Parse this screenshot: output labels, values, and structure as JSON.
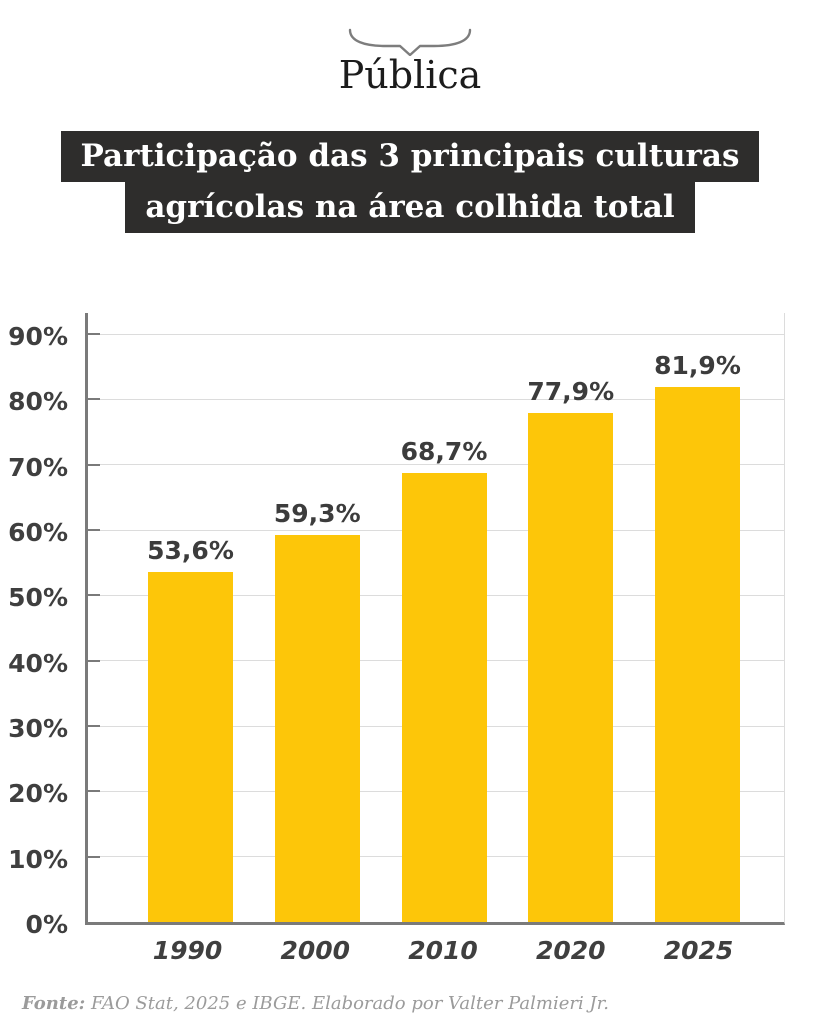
{
  "logo": {
    "text": "Pública"
  },
  "title": {
    "line1": "Participação das 3 principais culturas",
    "line2": "agrícolas na área colhida total"
  },
  "chart_data": {
    "type": "bar",
    "title": "Participação das 3 principais culturas agrícolas na área colhida total",
    "categories": [
      "1990",
      "2000",
      "2010",
      "2020",
      "2025"
    ],
    "values": [
      53.6,
      59.3,
      68.7,
      77.9,
      81.9
    ],
    "value_labels": [
      "53,6%",
      "59,3%",
      "68,7%",
      "77,9%",
      "81,9%"
    ],
    "xlabel": "",
    "ylabel": "",
    "ylim": [
      0,
      90
    ],
    "y_tick_step": 10,
    "y_tick_labels": [
      "0%",
      "10%",
      "20%",
      "30%",
      "40%",
      "50%",
      "60%",
      "70%",
      "80%",
      "90%"
    ],
    "grid": true,
    "legend_position": "none",
    "bar_color": "#FDC609"
  },
  "footer": {
    "source_label": "Fonte:",
    "source_text": " FAO Stat, 2025 e IBGE. Elaborado por Valter Palmieri Jr."
  },
  "colors": {
    "title_bg": "#2E2D2C",
    "title_text": "#FFFFFF",
    "axis": "#7A7A7A",
    "gridline": "#DCDCDC",
    "tick_label": "#3F3F3F",
    "value_label": "#3C3C3C",
    "footer_text": "#9B9B9B"
  }
}
